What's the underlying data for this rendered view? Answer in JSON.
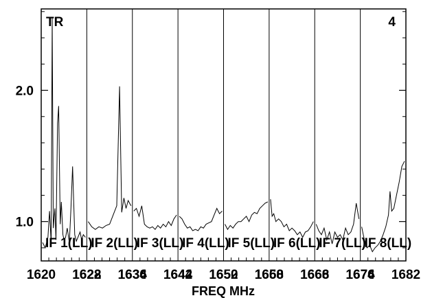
{
  "chart_data": {
    "type": "line",
    "corner_left": "TR",
    "corner_right": "4",
    "xlabel": "FREQ MHz",
    "ylim": [
      0.7,
      2.62
    ],
    "y_ticks": [
      {
        "value": 1.0,
        "label": "1.0"
      },
      {
        "value": 2.0,
        "label": "2.0"
      }
    ],
    "x_tick_labels": [
      "1620",
      "1622",
      "1628",
      "1634",
      "1636",
      "1642",
      "1644",
      "1650",
      "1652",
      "1658",
      "1660",
      "1666",
      "1668",
      "1674",
      "1676",
      "1682"
    ],
    "panels": [
      {
        "label": "IF 1(LL)",
        "x": [
          1620,
          1620.5,
          1621,
          1621.3,
          1621.6,
          1621.8,
          1622,
          1622.3,
          1622.5,
          1622.8,
          1623,
          1623.3,
          1623.5,
          1623.8,
          1624,
          1624.3,
          1624.6,
          1625,
          1625.3,
          1625.6,
          1626,
          1626.3,
          1626.6,
          1627,
          1627.3,
          1627.6,
          1628
        ],
        "y": [
          0.84,
          0.8,
          0.88,
          1.08,
          0.84,
          2.55,
          0.95,
          1.1,
          0.86,
          1.75,
          1.88,
          0.98,
          1.15,
          0.9,
          0.86,
          0.88,
          0.95,
          0.84,
          1.1,
          1.42,
          0.9,
          0.85,
          0.88,
          0.92,
          0.86,
          0.9,
          0.88
        ]
      },
      {
        "label": "IF 2(LL)",
        "x": [
          1628,
          1628.5,
          1629,
          1629.5,
          1630,
          1630.5,
          1631,
          1631.5,
          1632,
          1632.4,
          1632.7,
          1633,
          1633.3,
          1633.6,
          1634
        ],
        "y": [
          1.0,
          0.96,
          0.94,
          0.96,
          0.95,
          0.97,
          0.98,
          1.05,
          1.12,
          2.03,
          1.07,
          1.18,
          1.1,
          1.16,
          1.12
        ]
      },
      {
        "label": "IF 3(LL)",
        "x": [
          1634,
          1634.5,
          1635,
          1635.5,
          1636,
          1636.5,
          1637,
          1637.5,
          1638,
          1638.5,
          1639,
          1639.5,
          1640,
          1640.5,
          1641,
          1641.5,
          1642
        ],
        "y": [
          1.08,
          1.1,
          1.04,
          1.12,
          0.98,
          0.96,
          0.95,
          0.96,
          0.94,
          0.97,
          0.95,
          0.98,
          0.96,
          1.0,
          0.97,
          1.02,
          1.05
        ]
      },
      {
        "label": "IF 4(LL)",
        "x": [
          1642,
          1642.5,
          1643,
          1643.5,
          1644,
          1644.5,
          1645,
          1645.5,
          1646,
          1646.5,
          1647,
          1647.5,
          1648,
          1648.5,
          1649,
          1649.5,
          1650
        ],
        "y": [
          1.04,
          1.02,
          0.98,
          0.95,
          0.96,
          0.93,
          0.94,
          0.93,
          0.96,
          0.95,
          0.98,
          0.99,
          1.0,
          1.05,
          1.1,
          1.06,
          1.08
        ]
      },
      {
        "label": "IF 5(LL)",
        "x": [
          1650,
          1650.5,
          1651,
          1651.5,
          1652,
          1652.5,
          1653,
          1653.5,
          1654,
          1654.5,
          1655,
          1655.5,
          1656,
          1656.5,
          1657,
          1657.5,
          1658
        ],
        "y": [
          0.98,
          0.94,
          0.97,
          0.95,
          0.98,
          1.0,
          1.0,
          1.02,
          1.04,
          1.0,
          1.05,
          1.07,
          1.06,
          1.1,
          1.12,
          1.14,
          1.15
        ]
      },
      {
        "label": "IF 6(LL)",
        "x": [
          1658,
          1658.3,
          1658.6,
          1659,
          1659.5,
          1660,
          1660.5,
          1661,
          1661.5,
          1662,
          1662.5,
          1663,
          1663.5,
          1664,
          1664.5,
          1665,
          1665.5,
          1666
        ],
        "y": [
          1.17,
          1.04,
          1.06,
          1.0,
          1.02,
          1.0,
          0.96,
          0.98,
          0.93,
          0.95,
          0.93,
          0.9,
          0.92,
          0.88,
          0.92,
          0.93,
          0.96,
          1.0
        ]
      },
      {
        "label": "IF 7(LL)",
        "x": [
          1666,
          1666.5,
          1667,
          1667.5,
          1668,
          1668.5,
          1669,
          1669.5,
          1670,
          1670.5,
          1671,
          1671.5,
          1672,
          1672.5,
          1673,
          1673.5,
          1674
        ],
        "y": [
          0.98,
          0.93,
          0.9,
          0.95,
          0.86,
          0.92,
          0.83,
          0.92,
          0.88,
          0.9,
          0.86,
          0.95,
          0.9,
          0.92,
          0.98,
          1.14,
          1.02
        ]
      },
      {
        "label": "IF 8(LL)",
        "x": [
          1674,
          1674.5,
          1675,
          1675.5,
          1676,
          1676.5,
          1677,
          1677.5,
          1678,
          1678.5,
          1679,
          1679.3,
          1679.6,
          1680,
          1680.5,
          1681,
          1681.5,
          1682
        ],
        "y": [
          0.96,
          0.86,
          0.8,
          0.82,
          0.77,
          0.8,
          0.82,
          0.85,
          0.9,
          0.96,
          1.05,
          1.23,
          1.08,
          1.1,
          1.2,
          1.3,
          1.42,
          1.46
        ]
      }
    ]
  }
}
